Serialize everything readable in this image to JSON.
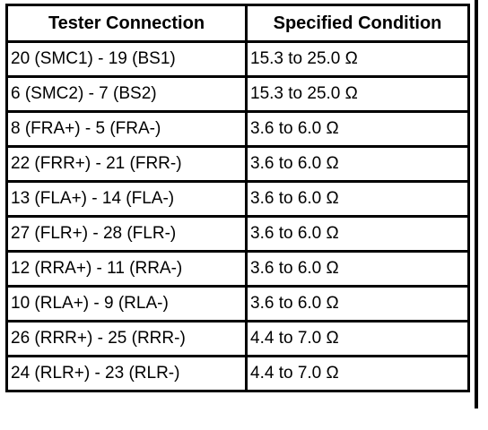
{
  "table": {
    "header": [
      "Tester Connection",
      "Specified Condition"
    ],
    "rows": [
      [
        "20 (SMC1) - 19 (BS1)",
        "15.3 to 25.0 Ω"
      ],
      [
        "6 (SMC2) - 7 (BS2)",
        "15.3 to 25.0 Ω"
      ],
      [
        "8 (FRA+) - 5 (FRA-)",
        "3.6 to 6.0 Ω"
      ],
      [
        "22 (FRR+) - 21 (FRR-)",
        "3.6 to 6.0 Ω"
      ],
      [
        "13 (FLA+) - 14 (FLA-)",
        "3.6 to 6.0 Ω"
      ],
      [
        "27 (FLR+) - 28 (FLR-)",
        "3.6 to 6.0 Ω"
      ],
      [
        "12 (RRA+) - 11 (RRA-)",
        "3.6 to 6.0 Ω"
      ],
      [
        "10 (RLA+) - 9 (RLA-)",
        "3.6 to 6.0 Ω"
      ],
      [
        "26 (RRR+) - 25 (RRR-)",
        "4.4 to 7.0 Ω"
      ],
      [
        "24 (RLR+) - 23 (RLR-)",
        "4.4 to 7.0 Ω"
      ]
    ]
  }
}
